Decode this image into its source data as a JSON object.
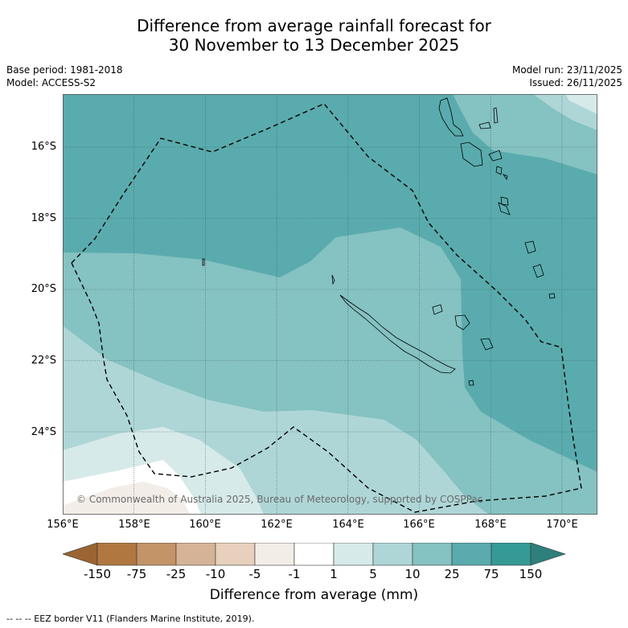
{
  "header": {
    "title_line1": "Difference from average rainfall forecast for",
    "title_line2": "30 November to 13 December 2025",
    "base_period": "Base period: 1981-2018",
    "model": "Model: ACCESS-S2",
    "model_run": "Model run: 23/11/2025",
    "issued": "Issued: 26/11/2025"
  },
  "map": {
    "lat_labels": [
      "16°S",
      "18°S",
      "20°S",
      "22°S",
      "24°S"
    ],
    "lon_labels": [
      "156°E",
      "158°E",
      "160°E",
      "162°E",
      "164°E",
      "166°E",
      "168°E",
      "170°E"
    ],
    "copyright": "© Commonwealth of Australia 2025, Bureau of Meteorology, supported by COSPPac",
    "colors": {
      "c_25_75": "#5aabad",
      "c_10_25": "#85c2c2",
      "c_5_10": "#afd6d6",
      "c_1_5": "#d6eae9",
      "c_neg1_1": "#ffffff",
      "c_neg5_neg1": "#f3ede8"
    }
  },
  "colorbar": {
    "labels": [
      "-150",
      "-75",
      "-25",
      "-10",
      "-5",
      "-1",
      "1",
      "5",
      "10",
      "25",
      "75",
      "150"
    ],
    "colors": [
      "#b07840",
      "#c29468",
      "#d5b396",
      "#e7d1bc",
      "#f3ede8",
      "#ffffff",
      "#d6eae9",
      "#afd6d6",
      "#85c2c2",
      "#5aabad",
      "#359a96"
    ],
    "under_color": "#9a6532",
    "over_color": "#2f7f7c",
    "title": "Difference from average (mm)"
  },
  "footer": {
    "text": "--  --  -- EEZ border V11 (Flanders Marine Institute, 2019)."
  }
}
